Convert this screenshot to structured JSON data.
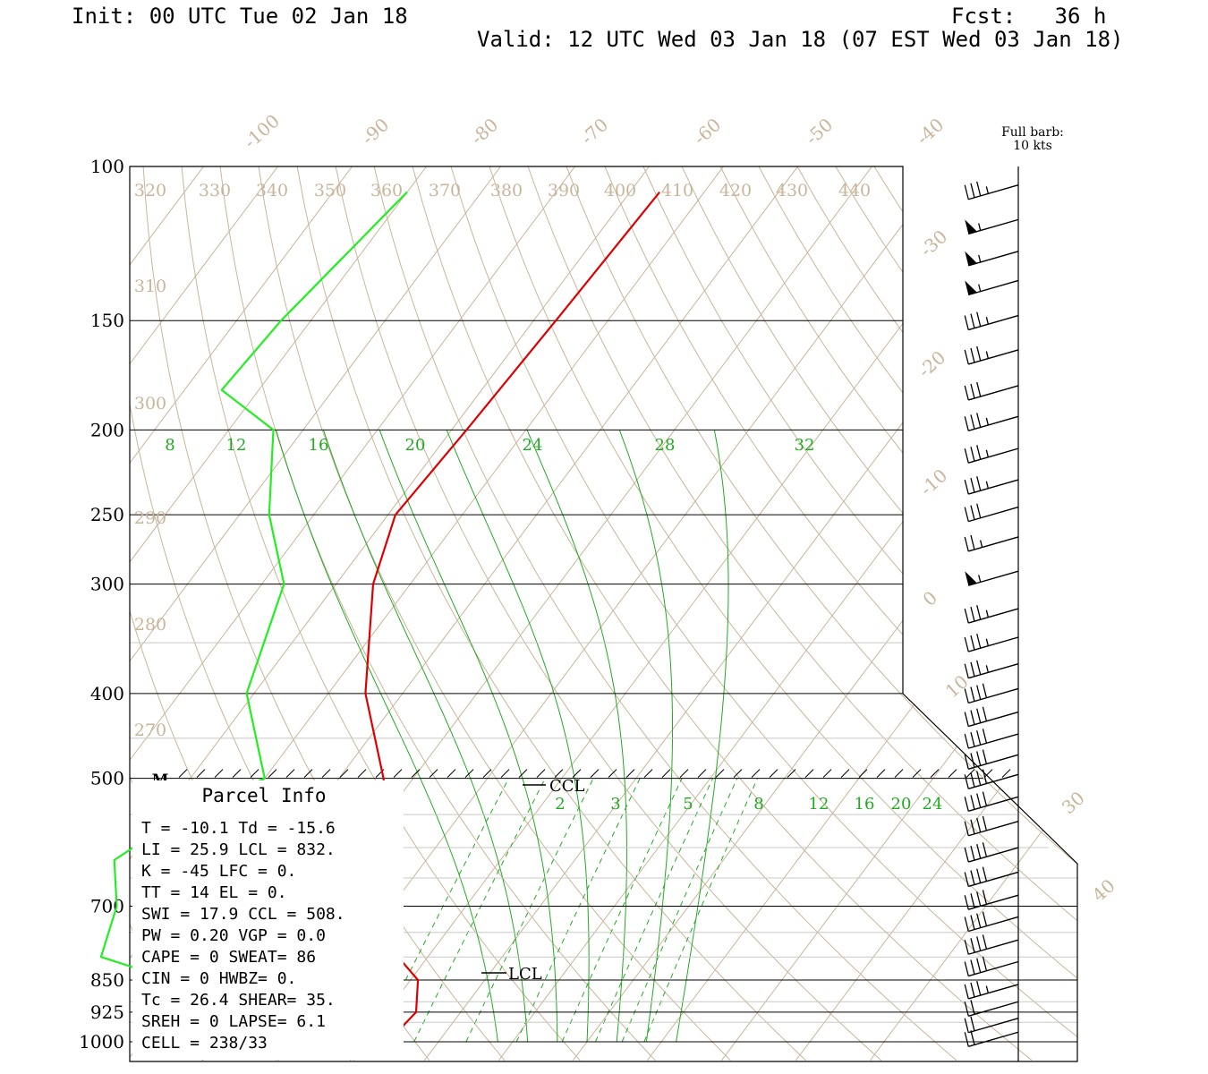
{
  "header": {
    "init": "Init: 00 UTC Tue 02 Jan 18",
    "fcst": "Fcst:   36 h",
    "valid": "Valid: 12 UTC Wed 03 Jan 18 (07 EST Wed 03 Jan 18)"
  },
  "barb_legend": {
    "line1": "Full barb:",
    "line2": "10 kts"
  },
  "marker_m": "M",
  "ccl_label": "CCL",
  "lcl_label": "LCL",
  "parcel_info": {
    "title": "Parcel Info",
    "rows": [
      "T  =   -10.1 Td = -15.6",
      "LI =   25.9 LCL =  832.",
      "K  =    -45 LFC =    0.",
      "TT =     14 EL  =    0.",
      "SWI =  17.9 CCL =  508.",
      "PW =   0.20 VGP =   0.0",
      "CAPE =    0 SWEAT=   86",
      "CIN =     0 HWBZ=    0.",
      "Tc =   26.4 SHEAR=  35.",
      "SREH =    0 LAPSE=  6.1",
      "CELL = 238/33"
    ]
  },
  "colors": {
    "temperature": "#dd0000",
    "dewpoint": "#22ee22",
    "isotherm": "#c9b59a",
    "isobar": "#000000",
    "mixing_ratio": "#22aa22"
  },
  "chart_data": {
    "type": "line",
    "title": "",
    "xlabel": "",
    "ylabel": "",
    "y_axis": "pressure (hPa, log)",
    "ylim": [
      1000,
      100
    ],
    "pressure_ticks": [
      "100",
      "150",
      "200",
      "250",
      "300",
      "400",
      "500",
      "700",
      "850",
      "925",
      "1000"
    ],
    "isotherm_labels": [
      "-100",
      "-90",
      "-80",
      "-70",
      "-60",
      "-50",
      "-40",
      "-30",
      "-20",
      "-10",
      "0",
      "10",
      "30",
      "40"
    ],
    "theta_labels": [
      "320",
      "330",
      "340",
      "350",
      "360",
      "370",
      "380",
      "390",
      "400",
      "410",
      "420",
      "430",
      "440",
      "310",
      "300",
      "290",
      "280",
      "270"
    ],
    "theta_e_labels": [
      "8",
      "12",
      "16",
      "20",
      "24",
      "28",
      "32"
    ],
    "mixing_ratio_labels": [
      "2",
      "3",
      "5",
      "8",
      "12",
      "16",
      "20",
      "24"
    ],
    "series": [
      {
        "values": [
          [
            1000,
            -10.1
          ],
          [
            970,
            -6.5
          ],
          [
            925,
            -6
          ],
          [
            850,
            -9
          ],
          [
            800,
            -14
          ],
          [
            700,
            -19
          ],
          [
            600,
            -26
          ],
          [
            500,
            -34
          ],
          [
            400,
            -45
          ],
          [
            300,
            -55
          ],
          [
            250,
            -59
          ],
          [
            200,
            -58
          ],
          [
            150,
            -57
          ],
          [
            107,
            -56
          ]
        ]
      },
      {
        "values": [
          [
            1000,
            -15.6
          ],
          [
            970,
            -17
          ],
          [
            925,
            -38
          ],
          [
            850,
            -42
          ],
          [
            800,
            -54
          ],
          [
            700,
            -57
          ],
          [
            620,
            -62
          ],
          [
            560,
            -58
          ],
          [
            500,
            -50
          ],
          [
            400,
            -61
          ],
          [
            300,
            -67
          ],
          [
            250,
            -76
          ],
          [
            200,
            -84
          ],
          [
            180,
            -95
          ],
          [
            150,
            -94
          ],
          [
            107,
            -90
          ]
        ]
      }
    ],
    "winds": [
      {
        "p": 105,
        "spd": 35
      },
      {
        "p": 115,
        "spd": 55
      },
      {
        "p": 125,
        "spd": 55
      },
      {
        "p": 135,
        "spd": 55
      },
      {
        "p": 148,
        "spd": 35
      },
      {
        "p": 162,
        "spd": 35
      },
      {
        "p": 178,
        "spd": 30
      },
      {
        "p": 193,
        "spd": 35
      },
      {
        "p": 210,
        "spd": 35
      },
      {
        "p": 228,
        "spd": 35
      },
      {
        "p": 245,
        "spd": 30
      },
      {
        "p": 265,
        "spd": 25
      },
      {
        "p": 290,
        "spd": 55
      },
      {
        "p": 320,
        "spd": 35
      },
      {
        "p": 345,
        "spd": 35
      },
      {
        "p": 370,
        "spd": 35
      },
      {
        "p": 395,
        "spd": 40
      },
      {
        "p": 420,
        "spd": 40
      },
      {
        "p": 445,
        "spd": 40
      },
      {
        "p": 470,
        "spd": 40
      },
      {
        "p": 495,
        "spd": 40
      },
      {
        "p": 525,
        "spd": 40
      },
      {
        "p": 560,
        "spd": 40
      },
      {
        "p": 600,
        "spd": 40
      },
      {
        "p": 640,
        "spd": 40
      },
      {
        "p": 680,
        "spd": 40
      },
      {
        "p": 720,
        "spd": 40
      },
      {
        "p": 765,
        "spd": 40
      },
      {
        "p": 810,
        "spd": 40
      },
      {
        "p": 860,
        "spd": 35
      },
      {
        "p": 900,
        "spd": 20
      },
      {
        "p": 940,
        "spd": 20
      },
      {
        "p": 975,
        "spd": 20
      }
    ]
  }
}
